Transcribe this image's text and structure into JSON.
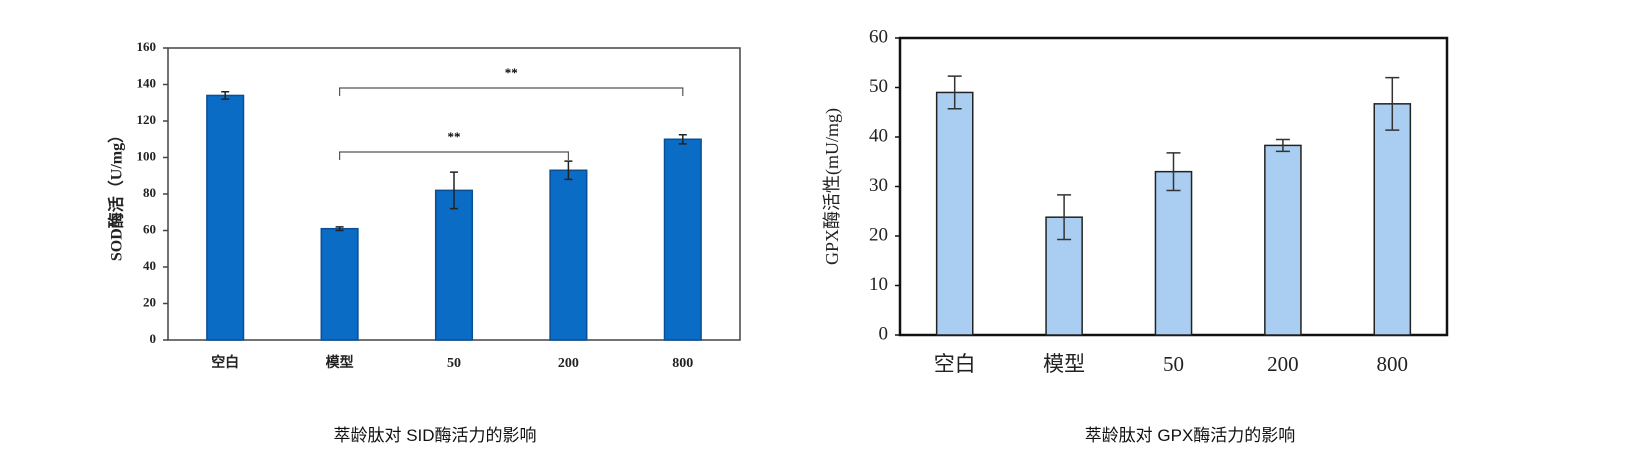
{
  "chart_data": [
    {
      "type": "bar",
      "ylabel": "SOD酶活（U/mg）",
      "caption": "萃龄肽对 SID酶活力的影响",
      "categories": [
        "空白",
        "模型",
        "50",
        "200",
        "800"
      ],
      "values": [
        134,
        61,
        82,
        93,
        110
      ],
      "errors": [
        2,
        1,
        10,
        5,
        2.5
      ],
      "color": "#0a6cc4",
      "edge": "#0a4f94",
      "ylim": [
        0,
        160
      ],
      "yticks": [
        0,
        20,
        40,
        60,
        80,
        100,
        120,
        140,
        160
      ],
      "annotations": [
        "**",
        "**"
      ]
    },
    {
      "type": "bar",
      "ylabel": "GPX酶活性(mU/mg)",
      "caption": "萃龄肽对 GPX酶活力的影响",
      "categories": [
        "空白",
        "模型",
        "50",
        "200",
        "800"
      ],
      "values": [
        49,
        23.8,
        33,
        38.3,
        46.7
      ],
      "errors": [
        3.3,
        4.5,
        3.8,
        1.2,
        5.3
      ],
      "color": "#a9cef2",
      "edge": "#222222",
      "ylim": [
        0,
        60
      ],
      "yticks": [
        0,
        10,
        20,
        30,
        40,
        50,
        60
      ]
    }
  ]
}
